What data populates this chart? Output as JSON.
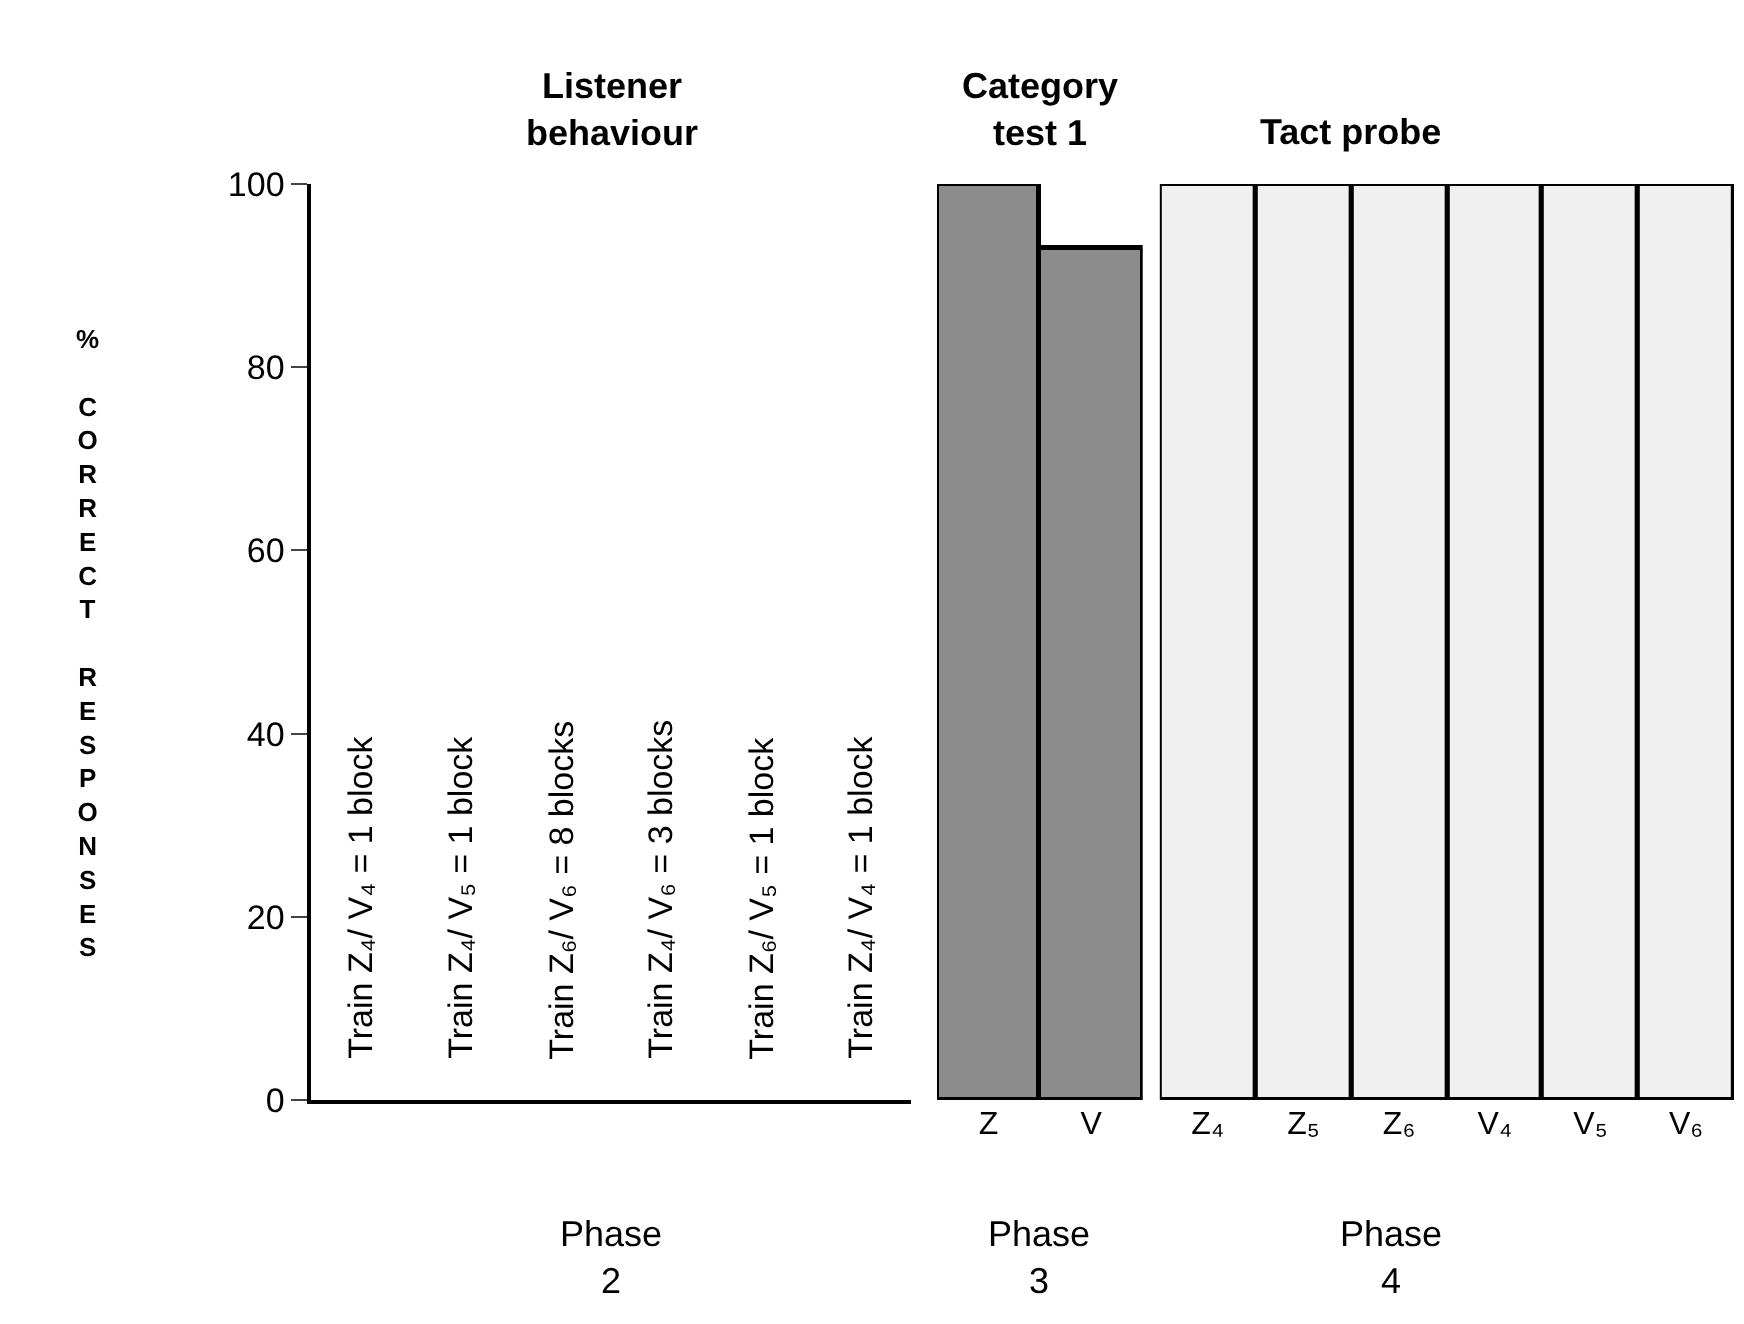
{
  "chart_data": [
    {
      "type": "bar",
      "title": "Listener behaviour",
      "xlabel": "Phase 2",
      "ylabel": "% CORRECT RESPONSES",
      "categories": [
        null,
        null,
        null,
        null,
        null,
        null
      ],
      "values": [
        null,
        null,
        null,
        null,
        null,
        null
      ],
      "ylim": [
        0,
        100
      ],
      "yticks": [
        0,
        20,
        40,
        60,
        80,
        100
      ],
      "annotations": [
        "Train Z₄/ V₄ = 1 block",
        "Train Z₄/ V₅ = 1 block",
        "Train Z₆/ V₆ = 8 blocks",
        "Train Z₄/ V₆ = 3 blocks",
        "Train Z₆/ V₅ = 1 block",
        "Train Z₄/ V₄ = 1 block"
      ]
    },
    {
      "type": "bar",
      "title": "Category test 1",
      "xlabel": "Phase 3",
      "categories": [
        "Z",
        "V"
      ],
      "values": [
        100,
        93
      ],
      "color": "#8c8c8c",
      "ylim": [
        0,
        100
      ],
      "tick_labels": "x"
    },
    {
      "type": "bar",
      "title": "Tact probe",
      "xlabel": "Phase 4",
      "categories": [
        "Z₄",
        "Z₅",
        "Z₆",
        "V₄",
        "V₅",
        "V₆"
      ],
      "values": [
        100,
        100,
        100,
        100,
        100,
        100
      ],
      "color": "#f0f0f0",
      "ylim": [
        0,
        100
      ],
      "tick_labels": "x"
    }
  ]
}
